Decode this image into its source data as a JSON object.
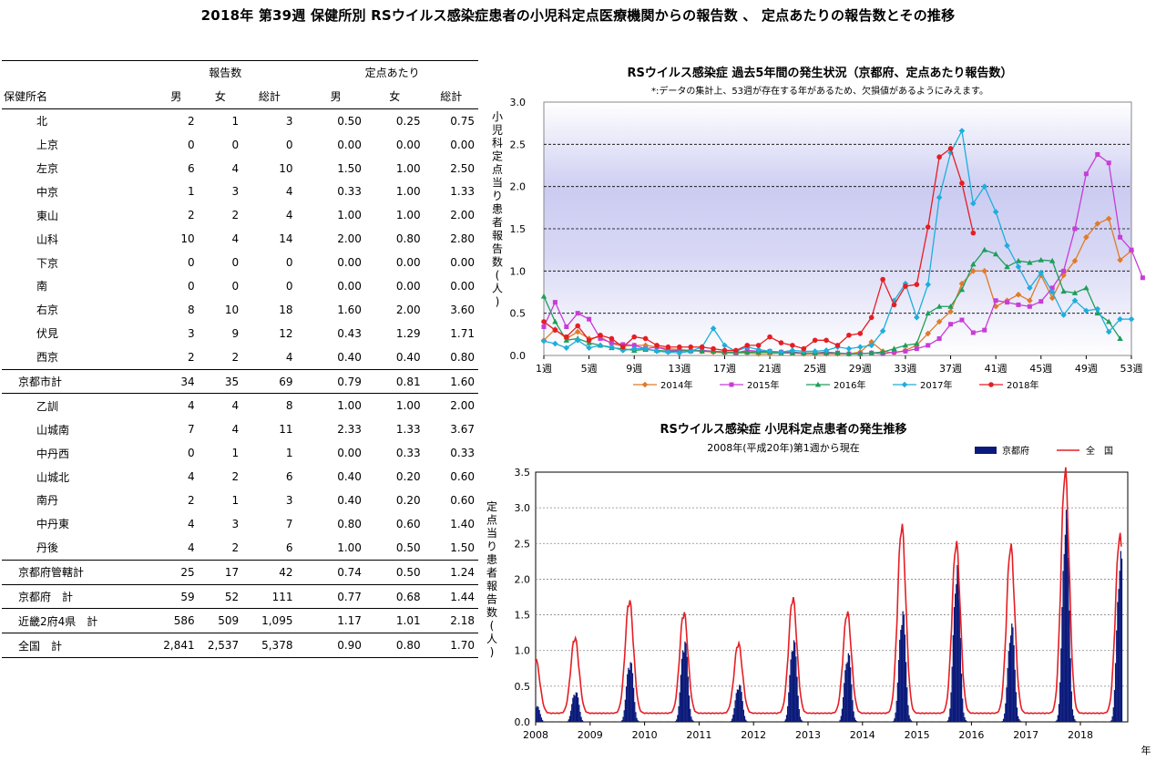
{
  "title": "2018年 第39週 保健所別 RSウイルス感染症患者の小児科定点医療機関からの報告数 、 定点あたりの報告数とその推移",
  "table": {
    "group_headers": [
      "報告数",
      "定点あたり"
    ],
    "name_header": "保健所名",
    "col_headers": [
      "男",
      "女",
      "総計",
      "男",
      "女",
      "総計"
    ],
    "rows": [
      {
        "name": "北",
        "v": [
          "2",
          "1",
          "3",
          "0.50",
          "0.25",
          "0.75"
        ]
      },
      {
        "name": "上京",
        "v": [
          "0",
          "0",
          "0",
          "0.00",
          "0.00",
          "0.00"
        ]
      },
      {
        "name": "左京",
        "v": [
          "6",
          "4",
          "10",
          "1.50",
          "1.00",
          "2.50"
        ]
      },
      {
        "name": "中京",
        "v": [
          "1",
          "3",
          "4",
          "0.33",
          "1.00",
          "1.33"
        ]
      },
      {
        "name": "東山",
        "v": [
          "2",
          "2",
          "4",
          "1.00",
          "1.00",
          "2.00"
        ]
      },
      {
        "name": "山科",
        "v": [
          "10",
          "4",
          "14",
          "2.00",
          "0.80",
          "2.80"
        ]
      },
      {
        "name": "下京",
        "v": [
          "0",
          "0",
          "0",
          "0.00",
          "0.00",
          "0.00"
        ]
      },
      {
        "name": "南",
        "v": [
          "0",
          "0",
          "0",
          "0.00",
          "0.00",
          "0.00"
        ]
      },
      {
        "name": "右京",
        "v": [
          "8",
          "10",
          "18",
          "1.60",
          "2.00",
          "3.60"
        ]
      },
      {
        "name": "伏見",
        "v": [
          "3",
          "9",
          "12",
          "0.43",
          "1.29",
          "1.71"
        ]
      },
      {
        "name": "西京",
        "v": [
          "2",
          "2",
          "4",
          "0.40",
          "0.40",
          "0.80"
        ]
      },
      {
        "name": "京都市計",
        "v": [
          "34",
          "35",
          "69",
          "0.79",
          "0.81",
          "1.60"
        ],
        "total": true
      },
      {
        "name": "乙訓",
        "v": [
          "4",
          "4",
          "8",
          "1.00",
          "1.00",
          "2.00"
        ]
      },
      {
        "name": "山城南",
        "v": [
          "7",
          "4",
          "11",
          "2.33",
          "1.33",
          "3.67"
        ]
      },
      {
        "name": "中丹西",
        "v": [
          "0",
          "1",
          "1",
          "0.00",
          "0.33",
          "0.33"
        ]
      },
      {
        "name": "山城北",
        "v": [
          "4",
          "2",
          "6",
          "0.40",
          "0.20",
          "0.60"
        ]
      },
      {
        "name": "南丹",
        "v": [
          "2",
          "1",
          "3",
          "0.40",
          "0.20",
          "0.60"
        ]
      },
      {
        "name": "中丹東",
        "v": [
          "4",
          "3",
          "7",
          "0.80",
          "0.60",
          "1.40"
        ]
      },
      {
        "name": "丹後",
        "v": [
          "4",
          "2",
          "6",
          "1.00",
          "0.50",
          "1.50"
        ]
      },
      {
        "name": "京都府管轄計",
        "v": [
          "25",
          "17",
          "42",
          "0.74",
          "0.50",
          "1.24"
        ],
        "total": true
      },
      {
        "name": "京都府　計",
        "v": [
          "59",
          "52",
          "111",
          "0.77",
          "0.68",
          "1.44"
        ],
        "total": true
      },
      {
        "name": "近畿2府4県　計",
        "v": [
          "586",
          "509",
          "1,095",
          "1.17",
          "1.01",
          "2.18"
        ],
        "total": true
      },
      {
        "name": "全国　計",
        "v": [
          "2,841",
          "2,537",
          "5,378",
          "0.90",
          "0.80",
          "1.70"
        ],
        "total": true
      }
    ]
  },
  "chart_data": [
    {
      "type": "line",
      "title": "RSウイルス感染症 過去5年間の発生状況（京都府、定点あたり報告数）",
      "subtitle": "*:データの集計上、53週が存在する年があるため、欠損値があるようにみえます。",
      "ylabel": "小児科定点当り患者報告数(人)",
      "ylim": [
        0,
        3.0
      ],
      "yticks": [
        "0.0",
        "0.5",
        "1.0",
        "1.5",
        "2.0",
        "2.5",
        "3.0"
      ],
      "xticks": [
        "1週",
        "5週",
        "9週",
        "13週",
        "17週",
        "21週",
        "25週",
        "29週",
        "33週",
        "37週",
        "41週",
        "45週",
        "49週",
        "53週"
      ],
      "legend_position": "bottom",
      "series": [
        {
          "name": "2014年",
          "color": "#E07B28",
          "marker": "diamond",
          "values": [
            0.18,
            0.31,
            0.2,
            0.28,
            0.2,
            0.22,
            0.14,
            0.11,
            0.12,
            0.12,
            0.1,
            0.08,
            0.07,
            0.06,
            0.05,
            0.04,
            0.03,
            0.03,
            0.03,
            0.02,
            0.02,
            0.03,
            0.03,
            0.02,
            0.02,
            0.02,
            0.02,
            0.02,
            0.04,
            0.16,
            0.05,
            0.03,
            0.06,
            0.12,
            0.26,
            0.4,
            0.52,
            0.85,
            1.0,
            1.0,
            0.58,
            0.65,
            0.72,
            0.65,
            0.95,
            0.68,
            0.95,
            1.12,
            1.4,
            1.56,
            1.62,
            1.13,
            1.24
          ]
        },
        {
          "name": "2015年",
          "color": "#C83CD6",
          "marker": "square",
          "values": [
            0.34,
            0.63,
            0.34,
            0.5,
            0.43,
            0.2,
            0.15,
            0.13,
            0.12,
            0.08,
            0.1,
            0.06,
            0.06,
            0.05,
            0.06,
            0.05,
            0.04,
            0.03,
            0.06,
            0.05,
            0.05,
            0.04,
            0.04,
            0.03,
            0.03,
            0.04,
            0.03,
            0.02,
            0.02,
            0.03,
            0.02,
            0.04,
            0.05,
            0.08,
            0.12,
            0.2,
            0.37,
            0.42,
            0.27,
            0.3,
            0.65,
            0.63,
            0.6,
            0.58,
            0.64,
            0.8,
            1.0,
            1.5,
            2.15,
            2.38,
            2.28,
            1.4,
            1.25,
            0.92
          ]
        },
        {
          "name": "2016年",
          "color": "#1E9E5A",
          "marker": "triangle",
          "values": [
            0.7,
            0.4,
            0.18,
            0.2,
            0.15,
            0.12,
            0.09,
            0.08,
            0.06,
            0.07,
            0.06,
            0.05,
            0.05,
            0.06,
            0.05,
            0.05,
            0.04,
            0.04,
            0.04,
            0.04,
            0.04,
            0.03,
            0.03,
            0.03,
            0.03,
            0.03,
            0.03,
            0.02,
            0.02,
            0.03,
            0.04,
            0.08,
            0.12,
            0.14,
            0.5,
            0.58,
            0.58,
            0.78,
            1.08,
            1.25,
            1.2,
            1.05,
            1.12,
            1.1,
            1.13,
            1.12,
            0.76,
            0.74,
            0.8,
            0.5,
            0.4,
            0.2
          ]
        },
        {
          "name": "2017年",
          "color": "#1EAEDB",
          "marker": "diamond",
          "values": [
            0.17,
            0.14,
            0.09,
            0.18,
            0.09,
            0.12,
            0.1,
            0.06,
            0.08,
            0.08,
            0.05,
            0.04,
            0.03,
            0.05,
            0.1,
            0.32,
            0.12,
            0.05,
            0.1,
            0.07,
            0.05,
            0.04,
            0.06,
            0.05,
            0.05,
            0.06,
            0.1,
            0.08,
            0.1,
            0.12,
            0.29,
            0.65,
            0.85,
            0.45,
            0.84,
            1.87,
            2.4,
            2.66,
            1.8,
            2.0,
            1.7,
            1.3,
            1.05,
            0.8,
            0.98,
            0.75,
            0.48,
            0.65,
            0.53,
            0.55,
            0.28,
            0.43,
            0.43
          ]
        },
        {
          "name": "2018年",
          "color": "#E51E24",
          "marker": "circle",
          "values": [
            0.4,
            0.3,
            0.22,
            0.35,
            0.18,
            0.24,
            0.2,
            0.1,
            0.22,
            0.2,
            0.12,
            0.1,
            0.1,
            0.1,
            0.1,
            0.08,
            0.06,
            0.06,
            0.12,
            0.12,
            0.22,
            0.15,
            0.12,
            0.08,
            0.18,
            0.18,
            0.12,
            0.24,
            0.26,
            0.45,
            0.9,
            0.6,
            0.82,
            0.84,
            1.52,
            2.35,
            2.45,
            2.04,
            1.45
          ]
        }
      ]
    },
    {
      "type": "area",
      "title": "RSウイルス感染症 小児科定点患者の発生推移",
      "subtitle": "2008年(平成20年)第1週から現在",
      "ylabel": "定点当り患者報告数(人)",
      "xlabel": "年",
      "ylim": [
        0,
        3.5
      ],
      "yticks": [
        "0.0",
        "0.5",
        "1.0",
        "1.5",
        "2.0",
        "2.5",
        "3.0",
        "3.5"
      ],
      "xticks": [
        "2008",
        "2009",
        "2010",
        "2011",
        "2012",
        "2013",
        "2014",
        "2015",
        "2016",
        "2017",
        "2018"
      ],
      "legend_position": "top-right",
      "series": [
        {
          "name": "京都府",
          "color": "#0B1A7A",
          "style": "bar",
          "peaks": [
            {
              "year": 2008,
              "peak": 0.25
            },
            {
              "year": 2009,
              "peak": 0.45
            },
            {
              "year": 2010,
              "peak": 0.9
            },
            {
              "year": 2011,
              "peak": 1.2
            },
            {
              "year": 2012,
              "peak": 0.55
            },
            {
              "year": 2013,
              "peak": 1.2
            },
            {
              "year": 2014,
              "peak": 1.0
            },
            {
              "year": 2015,
              "peak": 1.6
            },
            {
              "year": 2016,
              "peak": 2.25
            },
            {
              "year": 2017,
              "peak": 1.4
            },
            {
              "year": 2018,
              "peak": 3.0
            },
            {
              "year": 2019,
              "peak": 2.4
            }
          ]
        },
        {
          "name": "全　国",
          "color": "#E51E24",
          "style": "line",
          "peaks": [
            {
              "year": 2008,
              "peak": 0.75
            },
            {
              "year": 2009,
              "peak": 1.05
            },
            {
              "year": 2010,
              "peak": 1.57
            },
            {
              "year": 2011,
              "peak": 1.4
            },
            {
              "year": 2012,
              "peak": 0.97
            },
            {
              "year": 2013,
              "peak": 1.6
            },
            {
              "year": 2014,
              "peak": 1.4
            },
            {
              "year": 2015,
              "peak": 2.6
            },
            {
              "year": 2016,
              "peak": 2.36
            },
            {
              "year": 2017,
              "peak": 2.32
            },
            {
              "year": 2018,
              "peak": 3.36
            },
            {
              "year": 2019,
              "peak": 2.46
            }
          ]
        }
      ]
    }
  ]
}
